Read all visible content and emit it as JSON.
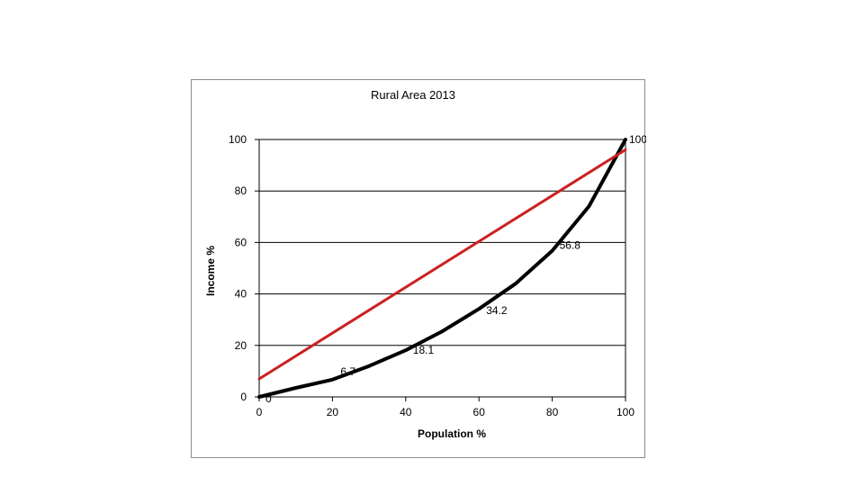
{
  "chart_data": {
    "type": "line",
    "title": "Rural Area 2013",
    "xlabel": "Population %",
    "ylabel": "Income %",
    "xlim": [
      0,
      100
    ],
    "ylim": [
      0,
      100
    ],
    "x_ticks": [
      "0",
      "20",
      "40",
      "60",
      "80",
      "100"
    ],
    "y_ticks": [
      "0",
      "20",
      "40",
      "60",
      "80",
      "100"
    ],
    "grid": "horizontal",
    "legend": "none",
    "series": [
      {
        "color": "#000000",
        "points": [
          {
            "x": 0,
            "y": 0,
            "label": "0"
          },
          {
            "x": 10,
            "y": 3.5
          },
          {
            "x": 20,
            "y": 6.7,
            "label": "6.7"
          },
          {
            "x": 30,
            "y": 12
          },
          {
            "x": 40,
            "y": 18.1,
            "label": "18.1"
          },
          {
            "x": 50,
            "y": 25.5
          },
          {
            "x": 60,
            "y": 34.2,
            "label": "34.2"
          },
          {
            "x": 70,
            "y": 44
          },
          {
            "x": 80,
            "y": 56.8,
            "label": "56.8"
          },
          {
            "x": 90,
            "y": 74
          },
          {
            "x": 100,
            "y": 100,
            "label": "100"
          }
        ]
      },
      {
        "color": "#cc2020",
        "points": [
          {
            "x": 0,
            "y": 7
          },
          {
            "x": 100,
            "y": 96
          }
        ]
      }
    ]
  }
}
